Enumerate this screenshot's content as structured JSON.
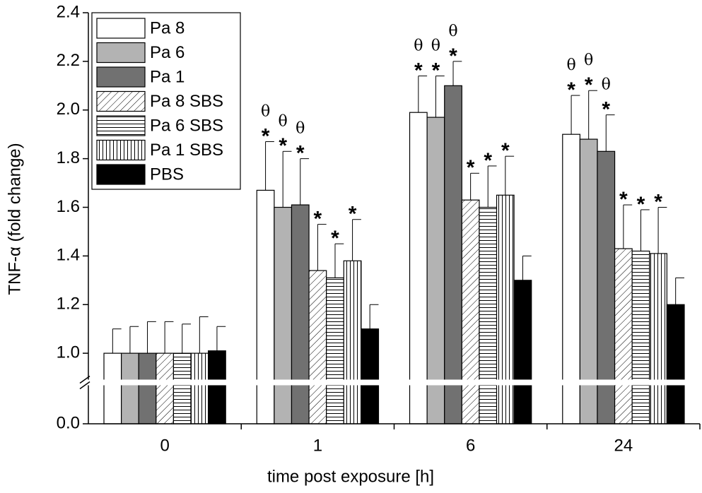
{
  "chart_data": {
    "type": "bar",
    "categories": [
      "0",
      "1",
      "6",
      "24"
    ],
    "x_label": "time post exposure [h]",
    "y_label": "TNF-α (fold change)",
    "ylim": [
      0,
      2.4
    ],
    "ybreak": [
      0.17,
      0.88
    ],
    "yticks": [
      {
        "value": 0,
        "label": "0.0"
      },
      {
        "value": 1,
        "label": "1.0"
      },
      1.2,
      1.4,
      1.6,
      1.8,
      {
        "value": 2,
        "label": "2.0"
      },
      2.2,
      2.4
    ],
    "legend": "upper-left",
    "series": [
      {
        "name": "Pa 8",
        "color": "#ffffff",
        "values": [
          1.0,
          1.67,
          1.99,
          1.9
        ],
        "errors": [
          0.1,
          0.2,
          0.15,
          0.16
        ],
        "stars": [
          null,
          "*",
          "*",
          "*"
        ],
        "thetas": [
          null,
          "θ",
          "θ",
          "θ"
        ]
      },
      {
        "name": "Pa 6",
        "color": "#b3b3b3",
        "values": [
          1.0,
          1.6,
          1.97,
          1.88
        ],
        "errors": [
          0.11,
          0.23,
          0.17,
          0.2
        ],
        "stars": [
          null,
          "*",
          "*",
          "*"
        ],
        "thetas": [
          null,
          "θ",
          "θ",
          "θ"
        ]
      },
      {
        "name": "Pa 1",
        "color": "#717171",
        "values": [
          1.0,
          1.61,
          2.1,
          1.83
        ],
        "errors": [
          0.13,
          0.19,
          0.1,
          0.15
        ],
        "stars": [
          null,
          "*",
          "*",
          "*"
        ],
        "thetas": [
          null,
          "θ",
          "θ",
          "θ"
        ]
      },
      {
        "name": "Pa 8 SBS",
        "color": "#ffffff",
        "pattern": "diagonal",
        "values": [
          1.0,
          1.34,
          1.63,
          1.43
        ],
        "errors": [
          0.13,
          0.19,
          0.11,
          0.18
        ],
        "stars": [
          null,
          "*",
          "*",
          "*"
        ]
      },
      {
        "name": "Pa 6 SBS",
        "color": "#ffffff",
        "pattern": "horizontal",
        "values": [
          1.0,
          1.31,
          1.6,
          1.42
        ],
        "errors": [
          0.12,
          0.14,
          0.17,
          0.17
        ],
        "stars": [
          null,
          "*",
          "*",
          "*"
        ]
      },
      {
        "name": "Pa 1 SBS",
        "color": "#ffffff",
        "pattern": "vertical",
        "values": [
          1.0,
          1.38,
          1.65,
          1.41
        ],
        "errors": [
          0.15,
          0.17,
          0.16,
          0.19
        ],
        "stars": [
          null,
          "*",
          "*",
          "*"
        ]
      },
      {
        "name": "PBS",
        "color": "#000000",
        "values": [
          1.01,
          1.1,
          1.3,
          1.2
        ],
        "errors": [
          0.1,
          0.1,
          0.1,
          0.11
        ]
      }
    ]
  }
}
